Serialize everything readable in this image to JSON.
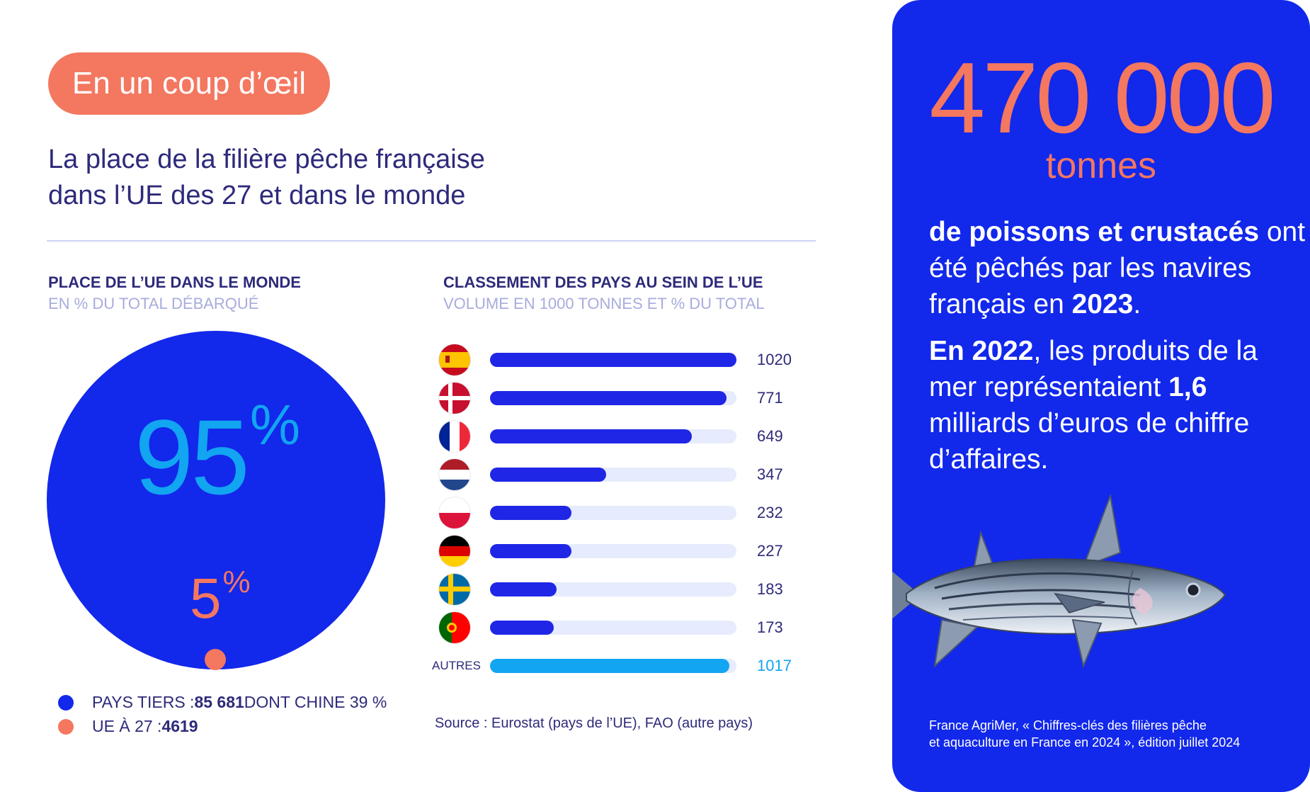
{
  "badge": "En un coup d’œil",
  "subtitle_line1": "La place de la filière pêche française",
  "subtitle_line2": "dans l’UE des 27 et dans le monde",
  "world": {
    "title": "PLACE DE L’UE DANS LE MONDE",
    "subtitle": "EN % DU TOTAL DÉBARQUÉ",
    "big_value": "95",
    "small_value": "5",
    "pct_sign": "%",
    "legend": [
      {
        "prefix": "PAYS TIERS : ",
        "value": "85 681",
        "suffix": " DONT CHINE 39 %",
        "color": "#1228eb"
      },
      {
        "prefix": "UE À 27 : ",
        "value": "4619",
        "suffix": "",
        "color": "#f47760"
      }
    ]
  },
  "ranking": {
    "title": "CLASSEMENT DES PAYS AU SEIN DE L’UE",
    "subtitle": "VOLUME EN 1000 TONNES ET % DU TOTAL",
    "other_label": "AUTRES",
    "source": "Source :  Eurostat (pays de l’UE), FAO (autre pays)"
  },
  "chart_data": {
    "type": "bar",
    "title": "CLASSEMENT DES PAYS AU SEIN DE L’UE",
    "ylabel": "VOLUME EN 1000 TONNES",
    "categories": [
      "Espagne",
      "Danemark",
      "France",
      "Pays-Bas",
      "Pologne",
      "Allemagne",
      "Suède",
      "Portugal",
      "AUTRES"
    ],
    "values": [
      1020,
      771,
      649,
      347,
      232,
      227,
      183,
      173,
      1017
    ],
    "fill_fractions": [
      1.0,
      0.96,
      0.82,
      0.47,
      0.33,
      0.33,
      0.27,
      0.26,
      0.97
    ],
    "colors": {
      "bar": "#2026e6",
      "other": "#12a5f1",
      "track": "#e6ebfd"
    }
  },
  "panel": {
    "stat": "470 000",
    "unit": "tonnes",
    "p1_bold": "de poissons et crustacés",
    "p1_rest": " ont été pêchés par les navires français en ",
    "p1_year": "2023",
    "p1_end": ".",
    "p2_year": "En 2022",
    "p2_mid": ", les produits de la mer représentaient ",
    "p2_value": "1,6",
    "p2_end": " milliards d’euros de chiffre d’affaires.",
    "source_line1": "France AgriMer, « Chiffres-clés des filières pêche",
    "source_line2": "et aquaculture en France en 2024 », édition juillet 2024"
  },
  "colors": {
    "accent": "#f47760",
    "blue": "#1228eb",
    "light_blue": "#12a5f1",
    "text": "#2d2a7a"
  }
}
